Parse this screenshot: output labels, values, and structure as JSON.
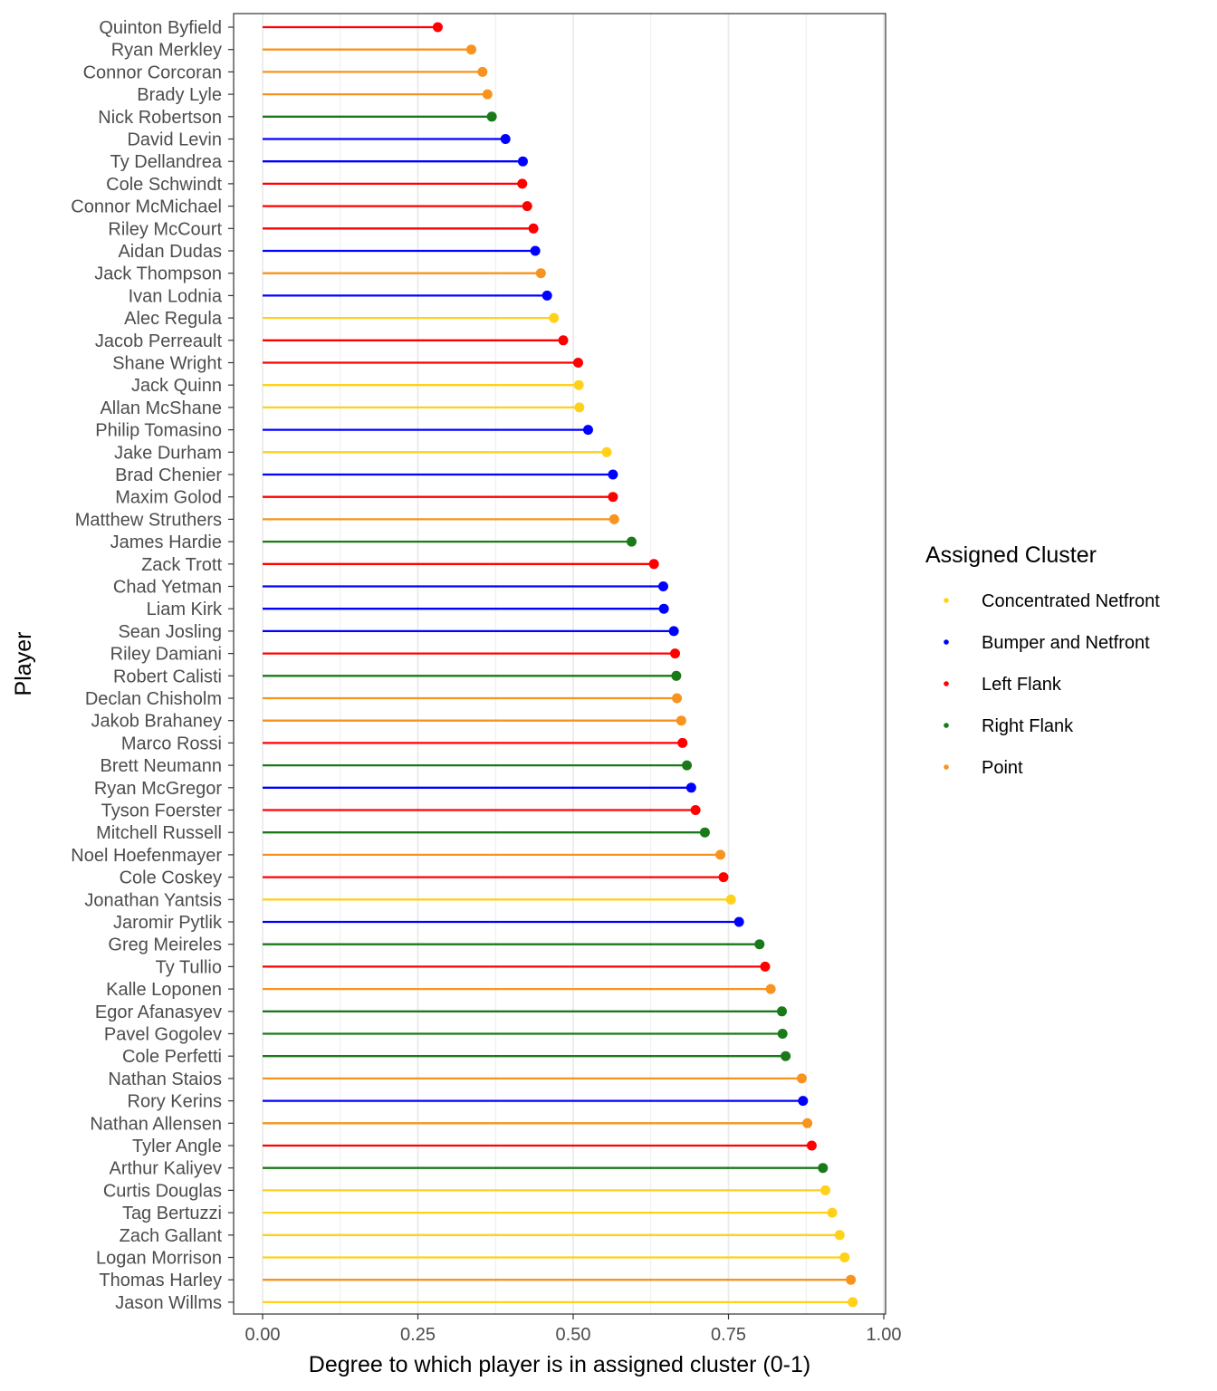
{
  "chart_data": {
    "type": "lollipop",
    "xlabel": "Degree to which player is in assigned cluster (0-1)",
    "ylabel": "Player",
    "xlim": [
      0,
      1
    ],
    "x_ticks": [
      0,
      0.25,
      0.5,
      0.75,
      1
    ],
    "x_tick_labels": [
      "0.00",
      "0.25",
      "0.50",
      "0.75",
      "1.00"
    ],
    "grid": true,
    "legend": {
      "title": "Assigned Cluster",
      "placement": "right",
      "entries": [
        {
          "label": "Concentrated Netfront",
          "color": "#FFD11A"
        },
        {
          "label": "Bumper and Netfront",
          "color": "#0000FF"
        },
        {
          "label": "Left Flank",
          "color": "#FF0000"
        },
        {
          "label": "Right Flank",
          "color": "#1A7A1A"
        },
        {
          "label": "Point",
          "color": "#F7931E"
        }
      ]
    },
    "players": [
      {
        "name": "Quinton Byfield",
        "value": 0.282,
        "cluster": "Left Flank"
      },
      {
        "name": "Ryan Merkley",
        "value": 0.336,
        "cluster": "Point"
      },
      {
        "name": "Connor Corcoran",
        "value": 0.354,
        "cluster": "Point"
      },
      {
        "name": "Brady Lyle",
        "value": 0.362,
        "cluster": "Point"
      },
      {
        "name": "Nick Robertson",
        "value": 0.369,
        "cluster": "Right Flank"
      },
      {
        "name": "David Levin",
        "value": 0.391,
        "cluster": "Bumper and Netfront"
      },
      {
        "name": "Ty Dellandrea",
        "value": 0.419,
        "cluster": "Bumper and Netfront"
      },
      {
        "name": "Cole Schwindt",
        "value": 0.418,
        "cluster": "Left Flank"
      },
      {
        "name": "Connor McMichael",
        "value": 0.426,
        "cluster": "Left Flank"
      },
      {
        "name": "Riley McCourt",
        "value": 0.436,
        "cluster": "Left Flank"
      },
      {
        "name": "Aidan Dudas",
        "value": 0.439,
        "cluster": "Bumper and Netfront"
      },
      {
        "name": "Jack Thompson",
        "value": 0.448,
        "cluster": "Point"
      },
      {
        "name": "Ivan Lodnia",
        "value": 0.458,
        "cluster": "Bumper and Netfront"
      },
      {
        "name": "Alec Regula",
        "value": 0.469,
        "cluster": "Concentrated Netfront"
      },
      {
        "name": "Jacob Perreault",
        "value": 0.484,
        "cluster": "Left Flank"
      },
      {
        "name": "Shane Wright",
        "value": 0.508,
        "cluster": "Left Flank"
      },
      {
        "name": "Jack Quinn",
        "value": 0.509,
        "cluster": "Concentrated Netfront"
      },
      {
        "name": "Allan McShane",
        "value": 0.51,
        "cluster": "Concentrated Netfront"
      },
      {
        "name": "Philip Tomasino",
        "value": 0.524,
        "cluster": "Bumper and Netfront"
      },
      {
        "name": "Jake Durham",
        "value": 0.554,
        "cluster": "Concentrated Netfront"
      },
      {
        "name": "Brad Chenier",
        "value": 0.564,
        "cluster": "Bumper and Netfront"
      },
      {
        "name": "Maxim Golod",
        "value": 0.564,
        "cluster": "Left Flank"
      },
      {
        "name": "Matthew Struthers",
        "value": 0.566,
        "cluster": "Point"
      },
      {
        "name": "James Hardie",
        "value": 0.594,
        "cluster": "Right Flank"
      },
      {
        "name": "Zack Trott",
        "value": 0.63,
        "cluster": "Left Flank"
      },
      {
        "name": "Chad Yetman",
        "value": 0.645,
        "cluster": "Bumper and Netfront"
      },
      {
        "name": "Liam Kirk",
        "value": 0.646,
        "cluster": "Bumper and Netfront"
      },
      {
        "name": "Sean Josling",
        "value": 0.662,
        "cluster": "Bumper and Netfront"
      },
      {
        "name": "Riley Damiani",
        "value": 0.664,
        "cluster": "Left Flank"
      },
      {
        "name": "Robert Calisti",
        "value": 0.666,
        "cluster": "Right Flank"
      },
      {
        "name": "Declan Chisholm",
        "value": 0.667,
        "cluster": "Point"
      },
      {
        "name": "Jakob Brahaney",
        "value": 0.674,
        "cluster": "Point"
      },
      {
        "name": "Marco Rossi",
        "value": 0.676,
        "cluster": "Left Flank"
      },
      {
        "name": "Brett Neumann",
        "value": 0.683,
        "cluster": "Right Flank"
      },
      {
        "name": "Ryan McGregor",
        "value": 0.69,
        "cluster": "Bumper and Netfront"
      },
      {
        "name": "Tyson Foerster",
        "value": 0.697,
        "cluster": "Left Flank"
      },
      {
        "name": "Mitchell Russell",
        "value": 0.712,
        "cluster": "Right Flank"
      },
      {
        "name": "Noel Hoefenmayer",
        "value": 0.737,
        "cluster": "Point"
      },
      {
        "name": "Cole Coskey",
        "value": 0.742,
        "cluster": "Left Flank"
      },
      {
        "name": "Jonathan Yantsis",
        "value": 0.754,
        "cluster": "Concentrated Netfront"
      },
      {
        "name": "Jaromir Pytlik",
        "value": 0.767,
        "cluster": "Bumper and Netfront"
      },
      {
        "name": "Greg Meireles",
        "value": 0.8,
        "cluster": "Right Flank"
      },
      {
        "name": "Ty Tullio",
        "value": 0.809,
        "cluster": "Left Flank"
      },
      {
        "name": "Kalle Loponen",
        "value": 0.818,
        "cluster": "Point"
      },
      {
        "name": "Egor Afanasyev",
        "value": 0.836,
        "cluster": "Right Flank"
      },
      {
        "name": "Pavel Gogolev",
        "value": 0.837,
        "cluster": "Right Flank"
      },
      {
        "name": "Cole Perfetti",
        "value": 0.842,
        "cluster": "Right Flank"
      },
      {
        "name": "Nathan Staios",
        "value": 0.868,
        "cluster": "Point"
      },
      {
        "name": "Rory Kerins",
        "value": 0.87,
        "cluster": "Bumper and Netfront"
      },
      {
        "name": "Nathan Allensen",
        "value": 0.877,
        "cluster": "Point"
      },
      {
        "name": "Tyler Angle",
        "value": 0.884,
        "cluster": "Left Flank"
      },
      {
        "name": "Arthur Kaliyev",
        "value": 0.902,
        "cluster": "Right Flank"
      },
      {
        "name": "Curtis Douglas",
        "value": 0.906,
        "cluster": "Concentrated Netfront"
      },
      {
        "name": "Tag Bertuzzi",
        "value": 0.917,
        "cluster": "Concentrated Netfront"
      },
      {
        "name": "Zach Gallant",
        "value": 0.929,
        "cluster": "Concentrated Netfront"
      },
      {
        "name": "Logan Morrison",
        "value": 0.937,
        "cluster": "Concentrated Netfront"
      },
      {
        "name": "Thomas Harley",
        "value": 0.947,
        "cluster": "Point"
      },
      {
        "name": "Jason Willms",
        "value": 0.95,
        "cluster": "Concentrated Netfront"
      }
    ]
  }
}
